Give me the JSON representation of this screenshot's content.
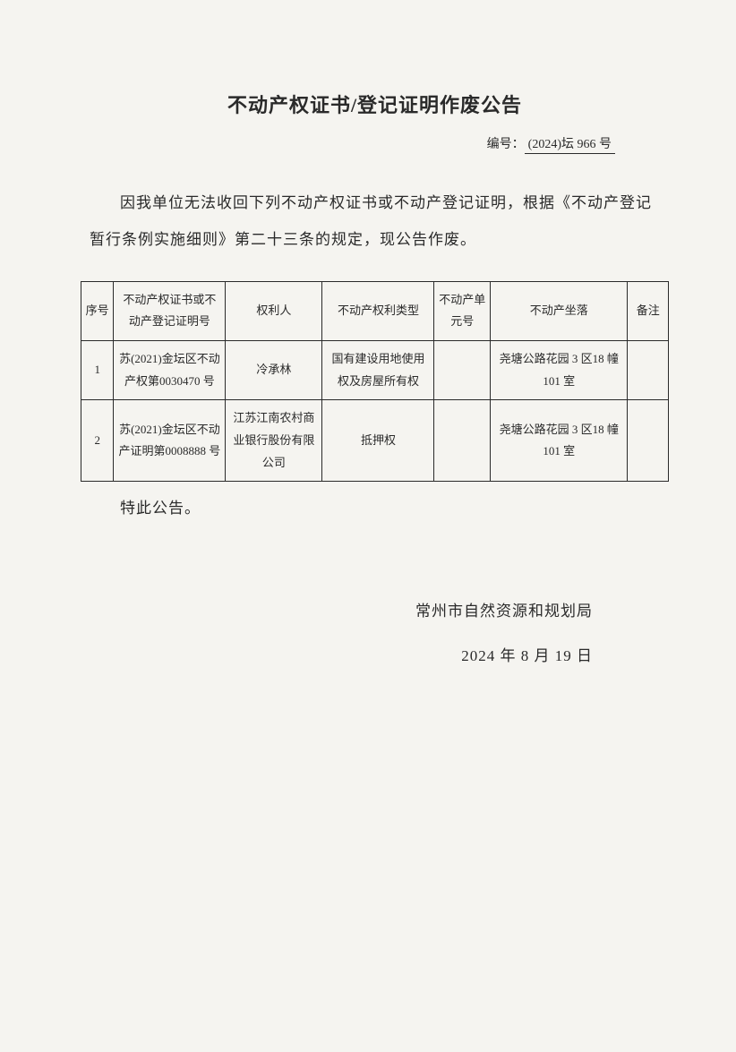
{
  "title": "不动产权证书/登记证明作废公告",
  "docNumber": {
    "label": "编号：",
    "value": "(2024)坛 966 号"
  },
  "bodyText": "因我单位无法收回下列不动产权证书或不动产登记证明，根据《不动产登记暂行条例实施细则》第二十三条的规定，现公告作废。",
  "table": {
    "headers": {
      "seq": "序号",
      "cert": "不动产权证书或不动产登记证明号",
      "holder": "权利人",
      "type": "不动产权利类型",
      "unit": "不动产单元号",
      "loc": "不动产坐落",
      "remark": "备注"
    },
    "rows": [
      {
        "seq": "1",
        "cert": "苏(2021)金坛区不动产权第0030470 号",
        "holder": "冷承林",
        "type": "国有建设用地使用权及房屋所有权",
        "unit": "",
        "loc": "尧塘公路花园 3 区18 幢 101 室",
        "remark": ""
      },
      {
        "seq": "2",
        "cert": "苏(2021)金坛区不动产证明第0008888 号",
        "holder": "江苏江南农村商业银行股份有限公司",
        "type": "抵押权",
        "unit": "",
        "loc": "尧塘公路花园 3 区18 幢 101 室",
        "remark": ""
      }
    ]
  },
  "closing": "特此公告。",
  "signature": {
    "org": "常州市自然资源和规划局",
    "date": "2024 年 8 月 19 日"
  }
}
